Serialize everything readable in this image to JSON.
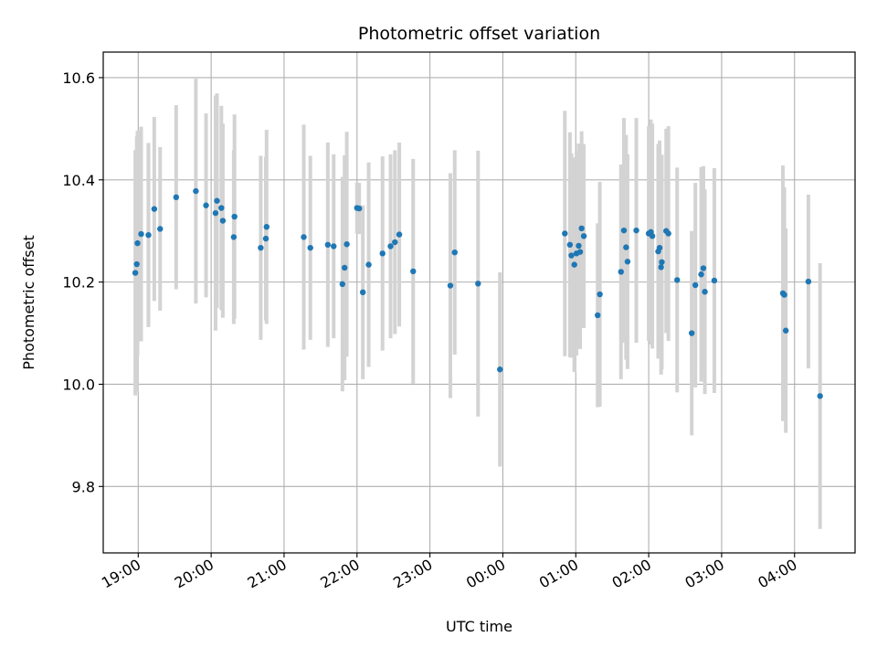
{
  "chart_data": {
    "type": "scatter",
    "title": "Photometric offset variation",
    "xlabel": "UTC time",
    "ylabel": "Photometric offset",
    "x_unit": "hours since 00:00 UTC",
    "xlim": [
      -5.48,
      4.83
    ],
    "ylim": [
      9.67,
      10.65
    ],
    "grid": true,
    "marker_color": "#1f77b4",
    "errorbar_color": "#d3d3d3",
    "x_ticks": [
      {
        "value": -5,
        "label": "19:00"
      },
      {
        "value": -4,
        "label": "20:00"
      },
      {
        "value": -3,
        "label": "21:00"
      },
      {
        "value": -2,
        "label": "22:00"
      },
      {
        "value": -1,
        "label": "23:00"
      },
      {
        "value": 0,
        "label": "00:00"
      },
      {
        "value": 1,
        "label": "01:00"
      },
      {
        "value": 2,
        "label": "02:00"
      },
      {
        "value": 3,
        "label": "03:00"
      },
      {
        "value": 4,
        "label": "04:00"
      }
    ],
    "y_ticks": [
      {
        "value": 9.8,
        "label": "9.8"
      },
      {
        "value": 10.0,
        "label": "10.0"
      },
      {
        "value": 10.2,
        "label": "10.2"
      },
      {
        "value": 10.4,
        "label": "10.4"
      },
      {
        "value": 10.6,
        "label": "10.6"
      }
    ],
    "points": [
      {
        "x": -5.04,
        "y": 10.218,
        "err": 0.24
      },
      {
        "x": -5.02,
        "y": 10.235,
        "err": 0.25
      },
      {
        "x": -5.01,
        "y": 10.276,
        "err": 0.22
      },
      {
        "x": -4.96,
        "y": 10.294,
        "err": 0.21
      },
      {
        "x": -4.86,
        "y": 10.292,
        "err": 0.18
      },
      {
        "x": -4.78,
        "y": 10.343,
        "err": 0.18
      },
      {
        "x": -4.7,
        "y": 10.304,
        "err": 0.16
      },
      {
        "x": -4.48,
        "y": 10.366,
        "err": 0.18
      },
      {
        "x": -4.21,
        "y": 10.378,
        "err": 0.22
      },
      {
        "x": -4.07,
        "y": 10.35,
        "err": 0.18
      },
      {
        "x": -3.94,
        "y": 10.335,
        "err": 0.23
      },
      {
        "x": -3.92,
        "y": 10.359,
        "err": 0.21
      },
      {
        "x": -3.86,
        "y": 10.345,
        "err": 0.2
      },
      {
        "x": -3.84,
        "y": 10.32,
        "err": 0.19
      },
      {
        "x": -3.69,
        "y": 10.288,
        "err": 0.17
      },
      {
        "x": -3.68,
        "y": 10.328,
        "err": 0.2
      },
      {
        "x": -3.32,
        "y": 10.267,
        "err": 0.18
      },
      {
        "x": -3.25,
        "y": 10.285,
        "err": 0.16
      },
      {
        "x": -3.24,
        "y": 10.308,
        "err": 0.19
      },
      {
        "x": -2.73,
        "y": 10.288,
        "err": 0.22
      },
      {
        "x": -2.64,
        "y": 10.267,
        "err": 0.18
      },
      {
        "x": -2.4,
        "y": 10.273,
        "err": 0.2
      },
      {
        "x": -2.32,
        "y": 10.27,
        "err": 0.18
      },
      {
        "x": -2.2,
        "y": 10.196,
        "err": 0.21
      },
      {
        "x": -2.17,
        "y": 10.228,
        "err": 0.22
      },
      {
        "x": -2.14,
        "y": 10.274,
        "err": 0.22
      },
      {
        "x": -2.0,
        "y": 10.345,
        "err": 0.05
      },
      {
        "x": -1.97,
        "y": 10.344,
        "err": 0.05
      },
      {
        "x": -1.92,
        "y": 10.18,
        "err": 0.17
      },
      {
        "x": -1.84,
        "y": 10.234,
        "err": 0.2
      },
      {
        "x": -1.65,
        "y": 10.256,
        "err": 0.19
      },
      {
        "x": -1.54,
        "y": 10.27,
        "err": 0.18
      },
      {
        "x": -1.48,
        "y": 10.278,
        "err": 0.18
      },
      {
        "x": -1.42,
        "y": 10.293,
        "err": 0.18
      },
      {
        "x": -1.23,
        "y": 10.221,
        "err": 0.22
      },
      {
        "x": -0.72,
        "y": 10.193,
        "err": 0.22
      },
      {
        "x": -0.66,
        "y": 10.258,
        "err": 0.2
      },
      {
        "x": -0.34,
        "y": 10.197,
        "err": 0.26
      },
      {
        "x": -0.04,
        "y": 10.029,
        "err": 0.19
      },
      {
        "x": 0.85,
        "y": 10.295,
        "err": 0.24
      },
      {
        "x": 0.92,
        "y": 10.273,
        "err": 0.22
      },
      {
        "x": 0.94,
        "y": 10.252,
        "err": 0.2
      },
      {
        "x": 0.98,
        "y": 10.234,
        "err": 0.21
      },
      {
        "x": 1.01,
        "y": 10.256,
        "err": 0.2
      },
      {
        "x": 1.04,
        "y": 10.271,
        "err": 0.2
      },
      {
        "x": 1.06,
        "y": 10.259,
        "err": 0.19
      },
      {
        "x": 1.08,
        "y": 10.305,
        "err": 0.19
      },
      {
        "x": 1.11,
        "y": 10.29,
        "err": 0.18
      },
      {
        "x": 1.3,
        "y": 10.135,
        "err": 0.18
      },
      {
        "x": 1.33,
        "y": 10.176,
        "err": 0.22
      },
      {
        "x": 1.62,
        "y": 10.22,
        "err": 0.21
      },
      {
        "x": 1.66,
        "y": 10.301,
        "err": 0.22
      },
      {
        "x": 1.69,
        "y": 10.268,
        "err": 0.22
      },
      {
        "x": 1.71,
        "y": 10.24,
        "err": 0.21
      },
      {
        "x": 1.83,
        "y": 10.301,
        "err": 0.22
      },
      {
        "x": 2.0,
        "y": 10.295,
        "err": 0.21
      },
      {
        "x": 2.03,
        "y": 10.298,
        "err": 0.22
      },
      {
        "x": 2.05,
        "y": 10.29,
        "err": 0.22
      },
      {
        "x": 2.13,
        "y": 10.26,
        "err": 0.21
      },
      {
        "x": 2.15,
        "y": 10.267,
        "err": 0.21
      },
      {
        "x": 2.17,
        "y": 10.229,
        "err": 0.21
      },
      {
        "x": 2.18,
        "y": 10.239,
        "err": 0.21
      },
      {
        "x": 2.24,
        "y": 10.3,
        "err": 0.2
      },
      {
        "x": 2.27,
        "y": 10.295,
        "err": 0.21
      },
      {
        "x": 2.39,
        "y": 10.204,
        "err": 0.22
      },
      {
        "x": 2.59,
        "y": 10.1,
        "err": 0.2
      },
      {
        "x": 2.64,
        "y": 10.194,
        "err": 0.2
      },
      {
        "x": 2.72,
        "y": 10.215,
        "err": 0.21
      },
      {
        "x": 2.75,
        "y": 10.227,
        "err": 0.2
      },
      {
        "x": 2.77,
        "y": 10.181,
        "err": 0.2
      },
      {
        "x": 2.9,
        "y": 10.203,
        "err": 0.22
      },
      {
        "x": 3.84,
        "y": 10.178,
        "err": 0.25
      },
      {
        "x": 3.86,
        "y": 10.175,
        "err": 0.21
      },
      {
        "x": 3.88,
        "y": 10.105,
        "err": 0.2
      },
      {
        "x": 4.19,
        "y": 10.201,
        "err": 0.17
      },
      {
        "x": 4.35,
        "y": 9.977,
        "err": 0.26
      }
    ]
  }
}
